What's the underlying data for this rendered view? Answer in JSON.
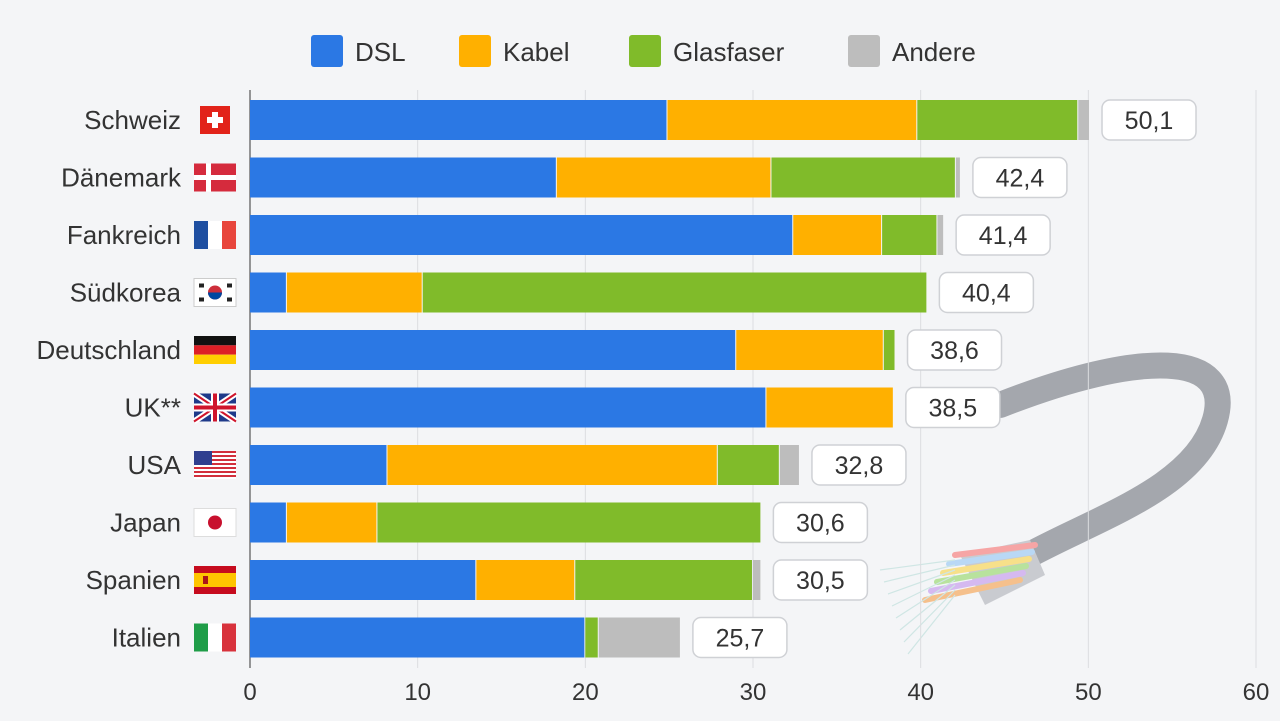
{
  "chart_data": {
    "type": "bar",
    "orientation": "horizontal",
    "stacked": true,
    "categories": [
      "Schweiz",
      "Dänemark",
      "Fankreich",
      "Südkorea",
      "Deutschland",
      "UK**",
      "USA",
      "Japan",
      "Spanien",
      "Italien"
    ],
    "flags": [
      "flag-switzerland",
      "flag-denmark",
      "flag-france",
      "flag-south-korea",
      "flag-germany",
      "flag-uk",
      "flag-usa",
      "flag-japan",
      "flag-spain",
      "flag-italy"
    ],
    "series": [
      {
        "name": "DSL",
        "color": "#2b78e4",
        "values": [
          24.9,
          18.3,
          32.4,
          2.2,
          29.0,
          30.8,
          8.2,
          2.2,
          13.5,
          20.0
        ]
      },
      {
        "name": "Kabel",
        "color": "#ffb000",
        "values": [
          14.9,
          12.8,
          5.3,
          8.1,
          8.8,
          7.6,
          19.7,
          5.4,
          5.9,
          0.0
        ]
      },
      {
        "name": "Glasfaser",
        "color": "#80bb2a",
        "values": [
          9.6,
          11.0,
          3.3,
          30.1,
          0.7,
          0.0,
          3.7,
          22.9,
          10.6,
          0.8
        ]
      },
      {
        "name": "Andere",
        "color": "#bdbdbd",
        "values": [
          0.7,
          0.3,
          0.4,
          0.0,
          0.0,
          0.0,
          1.2,
          0.0,
          0.5,
          4.9
        ]
      }
    ],
    "totals": [
      "50,1",
      "42,4",
      "41,4",
      "40,4",
      "38,6",
      "38,5",
      "32,8",
      "30,6",
      "30,5",
      "25,7"
    ],
    "xlim": [
      0,
      60
    ],
    "xticks": [
      "0",
      "10",
      "20",
      "30",
      "40",
      "50",
      "60"
    ],
    "grid": true,
    "legend_position": "top"
  }
}
